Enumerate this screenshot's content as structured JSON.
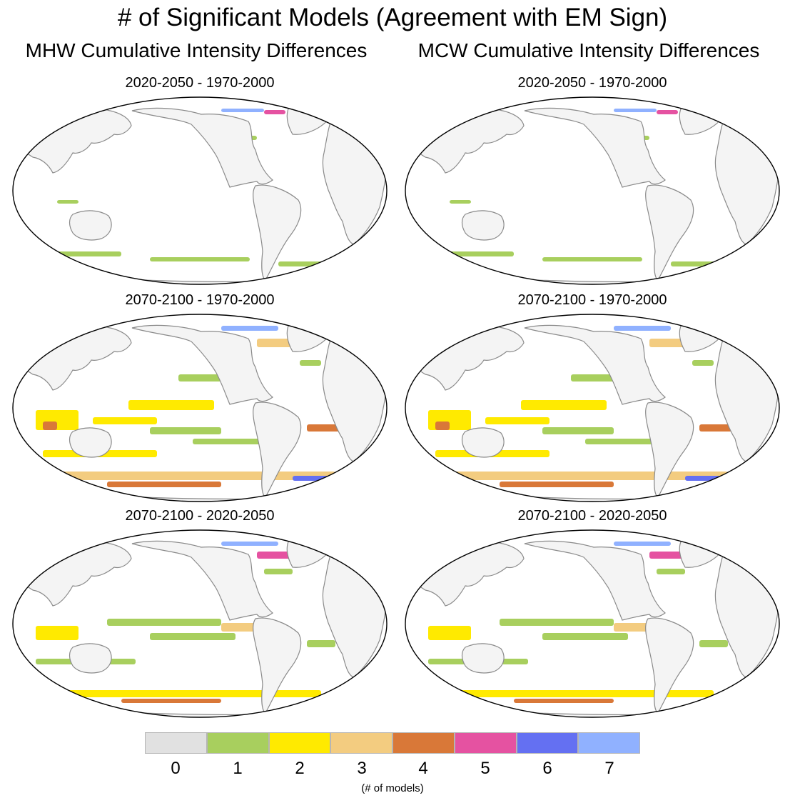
{
  "figure": {
    "title": "# of Significant Models (Agreement with EM Sign)",
    "column_titles": [
      "MHW Cumulative Intensity Differences",
      "MCW Cumulative Intensity Differences"
    ],
    "panels": [
      {
        "title": "2020-2050 - 1970-2000",
        "variable": "MHW",
        "agreement": "low"
      },
      {
        "title": "2020-2050 - 1970-2000",
        "variable": "MCW",
        "agreement": "low"
      },
      {
        "title": "2070-2100 - 1970-2000",
        "variable": "MHW",
        "agreement": "high"
      },
      {
        "title": "2070-2100 - 1970-2000",
        "variable": "MCW",
        "agreement": "high"
      },
      {
        "title": "2070-2100 - 2020-2050",
        "variable": "MHW",
        "agreement": "medium"
      },
      {
        "title": "2070-2100 - 2020-2050",
        "variable": "MCW",
        "agreement": "medium"
      }
    ]
  },
  "legend": {
    "levels": [
      "0",
      "1",
      "2",
      "3",
      "4",
      "5",
      "6",
      "7"
    ],
    "colors": [
      "#e1e1e1",
      "#a8cf5e",
      "#ffea00",
      "#f3cc80",
      "#d97838",
      "#e552a1",
      "#6470f2",
      "#90b1ff"
    ],
    "caption": "(# of models)"
  },
  "land_color": "#f4f4f4",
  "coast_color": "#8a8a8a"
}
